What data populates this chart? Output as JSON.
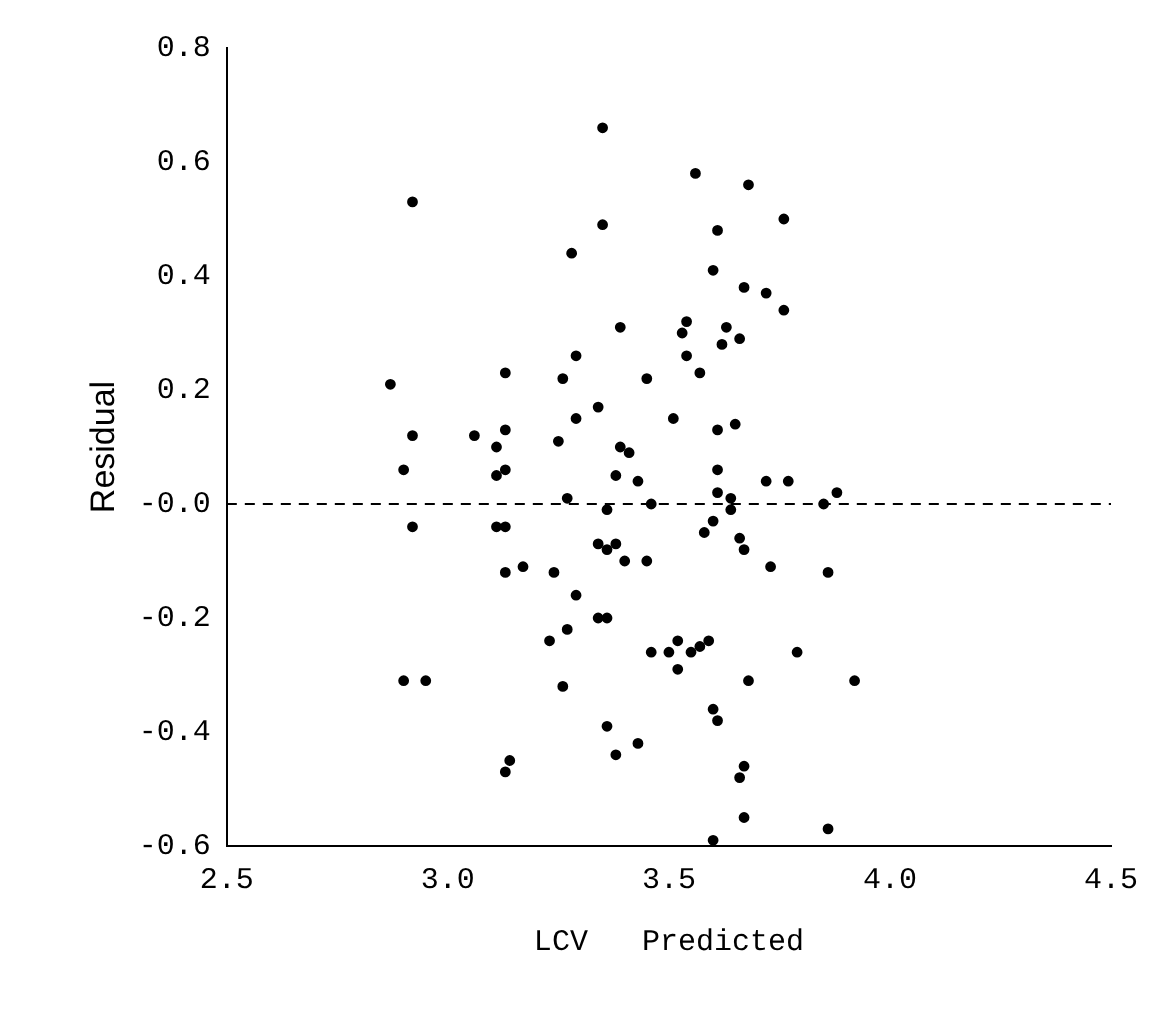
{
  "chart_data": {
    "type": "scatter",
    "xlabel": "LCV   Predicted",
    "ylabel": "Residual",
    "xlim": [
      2.5,
      4.5
    ],
    "xticks": [
      2.5,
      {
        "value": 3,
        "label": "3.0"
      },
      3.5,
      {
        "value": 4,
        "label": "4.0"
      },
      4.5
    ],
    "ylim": [
      -0.6,
      0.8
    ],
    "yticks": [
      -0.6,
      -0.4,
      -0.2,
      {
        "value": 0,
        "label": "-0.0"
      },
      0.2,
      0.4,
      0.6,
      0.8
    ],
    "grid": false,
    "legend": false,
    "marker": "circle",
    "ref_lines": [
      {
        "axis": "y",
        "value": 0,
        "line_style": "dashed",
        "color": "#000000"
      }
    ],
    "series": [
      {
        "color": "#000000",
        "x": [
          2.92,
          3.28,
          2.87,
          3.13,
          3.29,
          3.26,
          3.29,
          2.92,
          3.06,
          3.13,
          3.11,
          3.25,
          2.9,
          3.13,
          3.11,
          3.27,
          3.35,
          3.56,
          3.68,
          3.35,
          3.61,
          3.76,
          3.6,
          3.67,
          3.72,
          3.76,
          3.39,
          3.54,
          3.53,
          3.63,
          3.66,
          3.62,
          3.54,
          3.57,
          3.45,
          3.34,
          3.51,
          3.61,
          3.65,
          3.39,
          3.41,
          3.38,
          3.43,
          3.61,
          3.72,
          3.77,
          3.61,
          3.64,
          3.88,
          3.36,
          3.46,
          3.64,
          3.85,
          2.92,
          3.11,
          3.13,
          3.13,
          3.17,
          3.24,
          3.29,
          3.27,
          3.23,
          3.26,
          2.9,
          2.95,
          3.13,
          3.14,
          3.34,
          3.36,
          3.38,
          3.4,
          3.45,
          3.34,
          3.36,
          3.46,
          3.5,
          3.52,
          3.55,
          3.57,
          3.59,
          3.52,
          3.6,
          3.58,
          3.66,
          3.67,
          3.73,
          3.86,
          3.79,
          3.92,
          3.68,
          3.6,
          3.61,
          3.36,
          3.38,
          3.43,
          3.67,
          3.66,
          3.67,
          3.86,
          3.6
        ],
        "values": [
          0.53,
          0.44,
          0.21,
          0.23,
          0.26,
          0.22,
          0.15,
          0.12,
          0.12,
          0.13,
          0.1,
          0.11,
          0.06,
          0.06,
          0.05,
          0.01,
          0.66,
          0.58,
          0.56,
          0.49,
          0.48,
          0.5,
          0.41,
          0.38,
          0.37,
          0.34,
          0.31,
          0.32,
          0.3,
          0.31,
          0.29,
          0.28,
          0.26,
          0.23,
          0.22,
          0.17,
          0.15,
          0.13,
          0.14,
          0.1,
          0.09,
          0.05,
          0.04,
          0.06,
          0.04,
          0.04,
          0.02,
          0.01,
          0.02,
          -0.01,
          0.0,
          -0.01,
          0.0,
          -0.04,
          -0.04,
          -0.04,
          -0.12,
          -0.11,
          -0.12,
          -0.16,
          -0.22,
          -0.24,
          -0.32,
          -0.31,
          -0.31,
          -0.47,
          -0.45,
          -0.07,
          -0.08,
          -0.07,
          -0.1,
          -0.1,
          -0.2,
          -0.2,
          -0.26,
          -0.26,
          -0.24,
          -0.26,
          -0.25,
          -0.24,
          -0.29,
          -0.03,
          -0.05,
          -0.06,
          -0.08,
          -0.11,
          -0.12,
          -0.26,
          -0.31,
          -0.31,
          -0.36,
          -0.38,
          -0.39,
          -0.44,
          -0.42,
          -0.46,
          -0.48,
          -0.55,
          -0.57,
          -0.59
        ]
      }
    ]
  }
}
